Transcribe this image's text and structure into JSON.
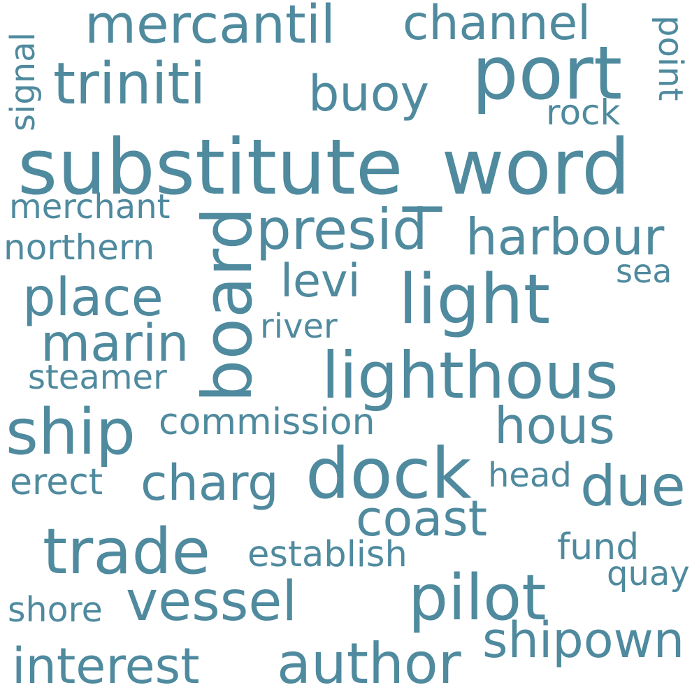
{
  "color": "#4f8a9e",
  "words": [
    "substitute_word",
    "port",
    "triniti",
    "mercantil",
    "channel",
    "buoy",
    "rock",
    "point",
    "signal",
    "board",
    "presid",
    "harbour",
    "merchant",
    "northern",
    "place",
    "levi",
    "light",
    "sea",
    "marin",
    "river",
    "lighthous",
    "steamer",
    "ship",
    "commission",
    "hous",
    "dock",
    "due",
    "erect",
    "charg",
    "head",
    "coast",
    "trade",
    "establish",
    "fund",
    "quay",
    "pilot",
    "shore",
    "vessel",
    "shipown",
    "interest",
    "author"
  ]
}
